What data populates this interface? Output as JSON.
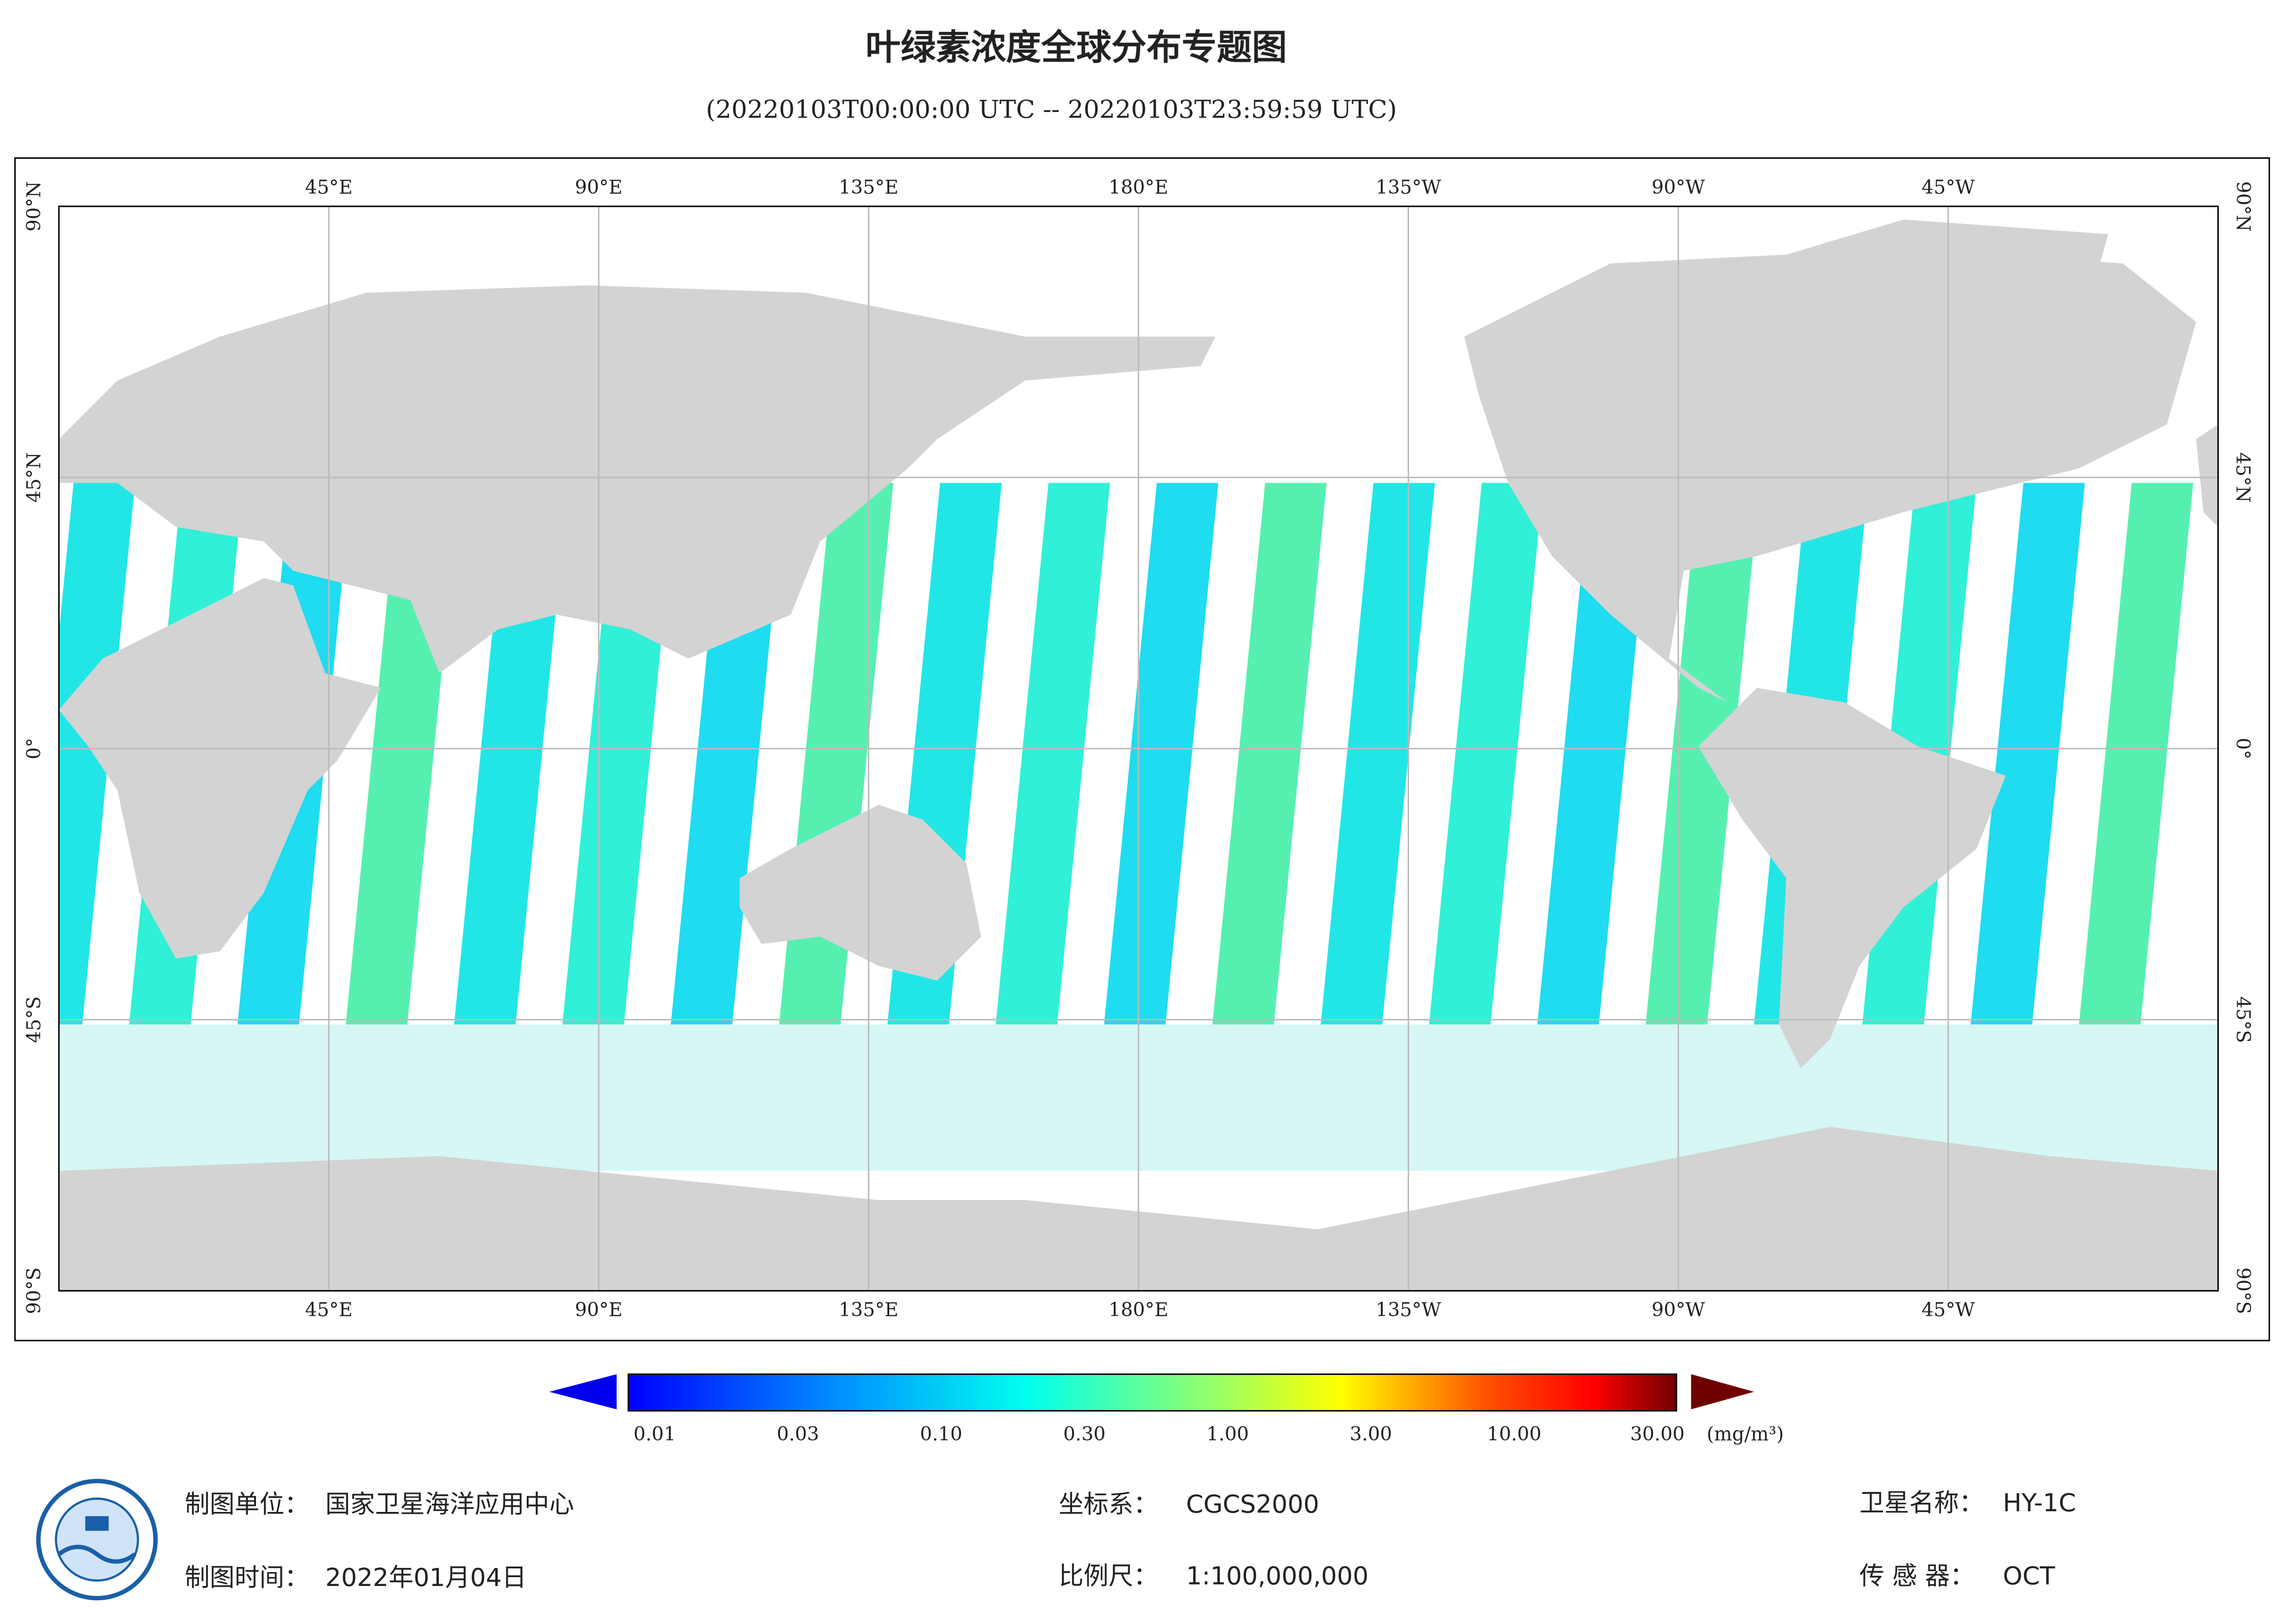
{
  "header": {
    "title": "叶绿素浓度全球分布专题图",
    "subtitle": "(20220103T00:00:00 UTC -- 20220103T23:59:59 UTC)"
  },
  "map": {
    "lon_labels": [
      "45°E",
      "90°E",
      "135°E",
      "180°E",
      "135°W",
      "90°W",
      "45°W"
    ],
    "lat_labels": [
      "90°N",
      "45°N",
      "0°",
      "45°S",
      "90°S"
    ]
  },
  "colorbar": {
    "ticks": [
      "0.01",
      "0.03",
      "0.10",
      "0.30",
      "1.00",
      "3.00",
      "10.00",
      "30.00"
    ],
    "unit": "(mg/m³)"
  },
  "footer": {
    "unit_label": "制图单位：",
    "unit_value": "国家卫星海洋应用中心",
    "time_label": "制图时间：",
    "time_value": "2022年01月04日",
    "crs_label": "坐标系：",
    "crs_value": "CGCS2000",
    "scale_label": "比例尺：",
    "scale_value": "1:100,000,000",
    "satellite_label": "卫星名称：",
    "satellite_value": "HY-1C",
    "sensor_label": "传 感 器：",
    "sensor_value": "OCT"
  }
}
